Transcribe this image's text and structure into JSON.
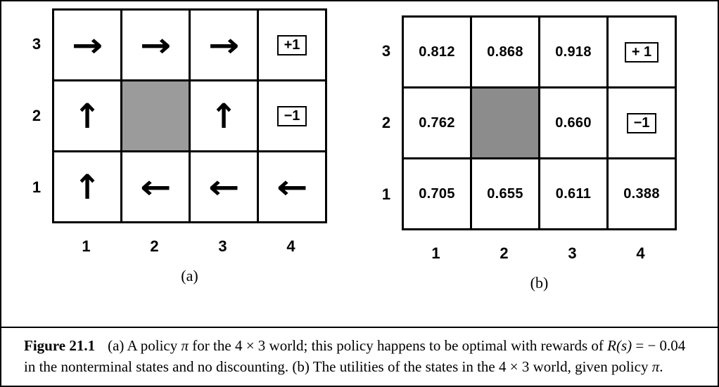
{
  "figure": {
    "panel_a": {
      "label": "(a)",
      "row_labels": [
        "3",
        "2",
        "1"
      ],
      "col_labels": [
        "1",
        "2",
        "3",
        "4"
      ],
      "cells": [
        [
          "→",
          "→",
          "→",
          "+1"
        ],
        [
          "↑",
          "",
          "↑",
          "−1"
        ],
        [
          "↑",
          "←",
          "←",
          "←"
        ]
      ],
      "policy": [
        [
          "right",
          "right",
          "right",
          "terminal +1"
        ],
        [
          "up",
          "wall",
          "up",
          "terminal −1"
        ],
        [
          "up",
          "left",
          "left",
          "left"
        ]
      ],
      "wall_cell": {
        "row_label": "2",
        "col_label": "2"
      }
    },
    "panel_b": {
      "label": "(b)",
      "row_labels": [
        "3",
        "2",
        "1"
      ],
      "col_labels": [
        "1",
        "2",
        "3",
        "4"
      ],
      "cells": [
        [
          "0.812",
          "0.868",
          "0.918",
          "+ 1"
        ],
        [
          "0.762",
          "",
          "0.660",
          "−1"
        ],
        [
          "0.705",
          "0.655",
          "0.611",
          "0.388"
        ]
      ],
      "wall_cell": {
        "row_label": "2",
        "col_label": "2"
      }
    },
    "colors": {
      "wall_a": "#9b9b9b",
      "wall_b": "#8c8c8c",
      "border": "#000000",
      "background": "#ffffff"
    }
  },
  "caption": {
    "label": "Figure 21.1",
    "segments": [
      {
        "text": "(a) A policy ",
        "italic": false
      },
      {
        "text": "π",
        "italic": true
      },
      {
        "text": " for the 4 × 3 world; this policy happens to be optimal with rewards of ",
        "italic": false
      },
      {
        "text": "R(s)",
        "italic": true
      },
      {
        "text": " = − 0.04 in the nonterminal states and no discounting. (b) The utilities of the states in the 4 × 3 world, given policy ",
        "italic": false
      },
      {
        "text": "π",
        "italic": true
      },
      {
        "text": ".",
        "italic": false
      }
    ]
  }
}
